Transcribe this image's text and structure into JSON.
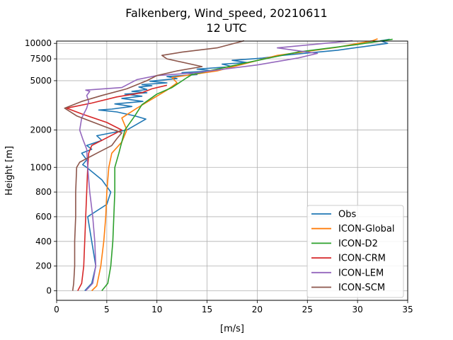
{
  "chart_data": {
    "type": "line",
    "title": "Falkenberg, Wind_speed, 20210611",
    "subtitle": "12 UTC",
    "xlabel": "[m/s]",
    "ylabel": "Height [m]",
    "xlim": [
      0,
      35
    ],
    "x_ticks": [
      0,
      5,
      10,
      15,
      20,
      25,
      30,
      35
    ],
    "y_scale": "piecewise (linear below 1000 m, log above)",
    "y_ticks": [
      0,
      200,
      400,
      600,
      800,
      1000,
      2000,
      5000,
      7500,
      10000
    ],
    "grid": true,
    "legend_position": "lower-right",
    "series": [
      {
        "name": "Obs",
        "color": "#1f77b4",
        "points": [
          [
            2.8,
            0
          ],
          [
            3.5,
            60
          ],
          [
            3.9,
            200
          ],
          [
            3.5,
            400
          ],
          [
            3.1,
            600
          ],
          [
            5.0,
            700
          ],
          [
            5.4,
            800
          ],
          [
            4.5,
            900
          ],
          [
            3.0,
            1000
          ],
          [
            2.6,
            1050
          ],
          [
            3.0,
            1150
          ],
          [
            2.5,
            1300
          ],
          [
            3.5,
            1400
          ],
          [
            3.0,
            1500
          ],
          [
            4.5,
            1650
          ],
          [
            4.0,
            1800
          ],
          [
            5.5,
            1900
          ],
          [
            7.0,
            2000
          ],
          [
            8.9,
            2450
          ],
          [
            7.8,
            2600
          ],
          [
            6.0,
            2800
          ],
          [
            4.2,
            2900
          ],
          [
            5.5,
            2950
          ],
          [
            7.5,
            3100
          ],
          [
            5.8,
            3250
          ],
          [
            8.6,
            3400
          ],
          [
            6.5,
            3600
          ],
          [
            8.5,
            3750
          ],
          [
            6.8,
            3900
          ],
          [
            9.0,
            4000
          ],
          [
            7.5,
            4100
          ],
          [
            9.0,
            4250
          ],
          [
            8.2,
            4450
          ],
          [
            9.5,
            4550
          ],
          [
            8.5,
            4650
          ],
          [
            11.0,
            4800
          ],
          [
            9.3,
            4950
          ],
          [
            12.0,
            5200
          ],
          [
            11.0,
            5400
          ],
          [
            14.0,
            5600
          ],
          [
            12.5,
            5800
          ],
          [
            15.5,
            6000
          ],
          [
            14.0,
            6200
          ],
          [
            17.5,
            6500
          ],
          [
            16.5,
            6800
          ],
          [
            19.0,
            7000
          ],
          [
            17.5,
            7300
          ],
          [
            20.5,
            7600
          ],
          [
            22.5,
            8000
          ],
          [
            28.0,
            8800
          ],
          [
            33.0,
            10000
          ],
          [
            32.3,
            10500
          ],
          [
            33.2,
            10800
          ]
        ]
      },
      {
        "name": "ICON-Global",
        "color": "#ff7f0e",
        "points": [
          [
            3.5,
            0
          ],
          [
            4.0,
            40
          ],
          [
            4.4,
            200
          ],
          [
            4.7,
            400
          ],
          [
            4.9,
            600
          ],
          [
            5.0,
            800
          ],
          [
            5.2,
            1000
          ],
          [
            5.5,
            1300
          ],
          [
            6.5,
            1600
          ],
          [
            7.0,
            2000
          ],
          [
            6.5,
            2500
          ],
          [
            8.0,
            3000
          ],
          [
            11.0,
            4200
          ],
          [
            12.0,
            4800
          ],
          [
            11.5,
            5300
          ],
          [
            16.0,
            6000
          ],
          [
            22.0,
            8000
          ],
          [
            28.0,
            9300
          ],
          [
            31.5,
            10500
          ],
          [
            32.0,
            10900
          ]
        ]
      },
      {
        "name": "ICON-D2",
        "color": "#2ca02c",
        "points": [
          [
            4.5,
            0
          ],
          [
            5.1,
            60
          ],
          [
            5.4,
            200
          ],
          [
            5.6,
            400
          ],
          [
            5.7,
            600
          ],
          [
            5.8,
            800
          ],
          [
            5.8,
            1000
          ],
          [
            6.2,
            1300
          ],
          [
            6.8,
            2000
          ],
          [
            7.8,
            2600
          ],
          [
            8.5,
            3200
          ],
          [
            10.0,
            3900
          ],
          [
            11.5,
            4400
          ],
          [
            13.0,
            5300
          ],
          [
            13.5,
            5600
          ],
          [
            19.0,
            7000
          ],
          [
            24.0,
            8500
          ],
          [
            30.0,
            9800
          ],
          [
            33.5,
            10800
          ]
        ]
      },
      {
        "name": "ICON-CRM",
        "color": "#d62728",
        "points": [
          [
            2.1,
            0
          ],
          [
            2.5,
            60
          ],
          [
            2.7,
            200
          ],
          [
            2.8,
            400
          ],
          [
            2.9,
            600
          ],
          [
            3.0,
            800
          ],
          [
            3.1,
            1000
          ],
          [
            3.2,
            1300
          ],
          [
            3.5,
            1500
          ],
          [
            4.5,
            1650
          ],
          [
            6.5,
            2000
          ],
          [
            5.0,
            2300
          ],
          [
            2.5,
            2700
          ],
          [
            1.0,
            3000
          ],
          [
            3.5,
            3300
          ],
          [
            6.0,
            3700
          ],
          [
            8.5,
            4000
          ],
          [
            9.5,
            4300
          ],
          [
            11.0,
            4600
          ]
        ]
      },
      {
        "name": "ICON-LEM",
        "color": "#9467bd",
        "points": [
          [
            2.9,
            0
          ],
          [
            3.6,
            60
          ],
          [
            3.9,
            200
          ],
          [
            3.8,
            400
          ],
          [
            3.6,
            600
          ],
          [
            3.3,
            800
          ],
          [
            3.1,
            1000
          ],
          [
            3.0,
            1400
          ],
          [
            2.6,
            1700
          ],
          [
            2.3,
            2000
          ],
          [
            2.5,
            2500
          ],
          [
            3.0,
            3000
          ],
          [
            3.2,
            3400
          ],
          [
            3.0,
            3800
          ],
          [
            3.3,
            4100
          ],
          [
            2.9,
            4200
          ],
          [
            6.5,
            4400
          ],
          [
            8.0,
            5100
          ],
          [
            10.0,
            5500
          ],
          [
            14.0,
            5800
          ],
          [
            16.0,
            6100
          ],
          [
            20.0,
            6700
          ],
          [
            24.0,
            7600
          ],
          [
            26.0,
            8300
          ],
          [
            22.0,
            9200
          ],
          [
            29.5,
            10500
          ]
        ]
      },
      {
        "name": "ICON-SCM",
        "color": "#8c564b",
        "points": [
          [
            1.6,
            0
          ],
          [
            1.7,
            60
          ],
          [
            1.8,
            200
          ],
          [
            1.8,
            400
          ],
          [
            1.9,
            600
          ],
          [
            1.9,
            800
          ],
          [
            2.0,
            1000
          ],
          [
            2.3,
            1100
          ],
          [
            4.0,
            1300
          ],
          [
            5.5,
            1500
          ],
          [
            6.0,
            1700
          ],
          [
            6.5,
            1900
          ],
          [
            5.0,
            2100
          ],
          [
            2.0,
            2600
          ],
          [
            0.8,
            3000
          ],
          [
            2.5,
            3400
          ],
          [
            4.5,
            3800
          ],
          [
            7.0,
            4300
          ],
          [
            9.0,
            5000
          ],
          [
            10.0,
            5500
          ],
          [
            12.0,
            6000
          ],
          [
            14.5,
            6500
          ],
          [
            11.0,
            7500
          ],
          [
            10.5,
            8000
          ],
          [
            12.5,
            8500
          ],
          [
            16.0,
            9200
          ],
          [
            18.7,
            10500
          ]
        ]
      }
    ]
  }
}
